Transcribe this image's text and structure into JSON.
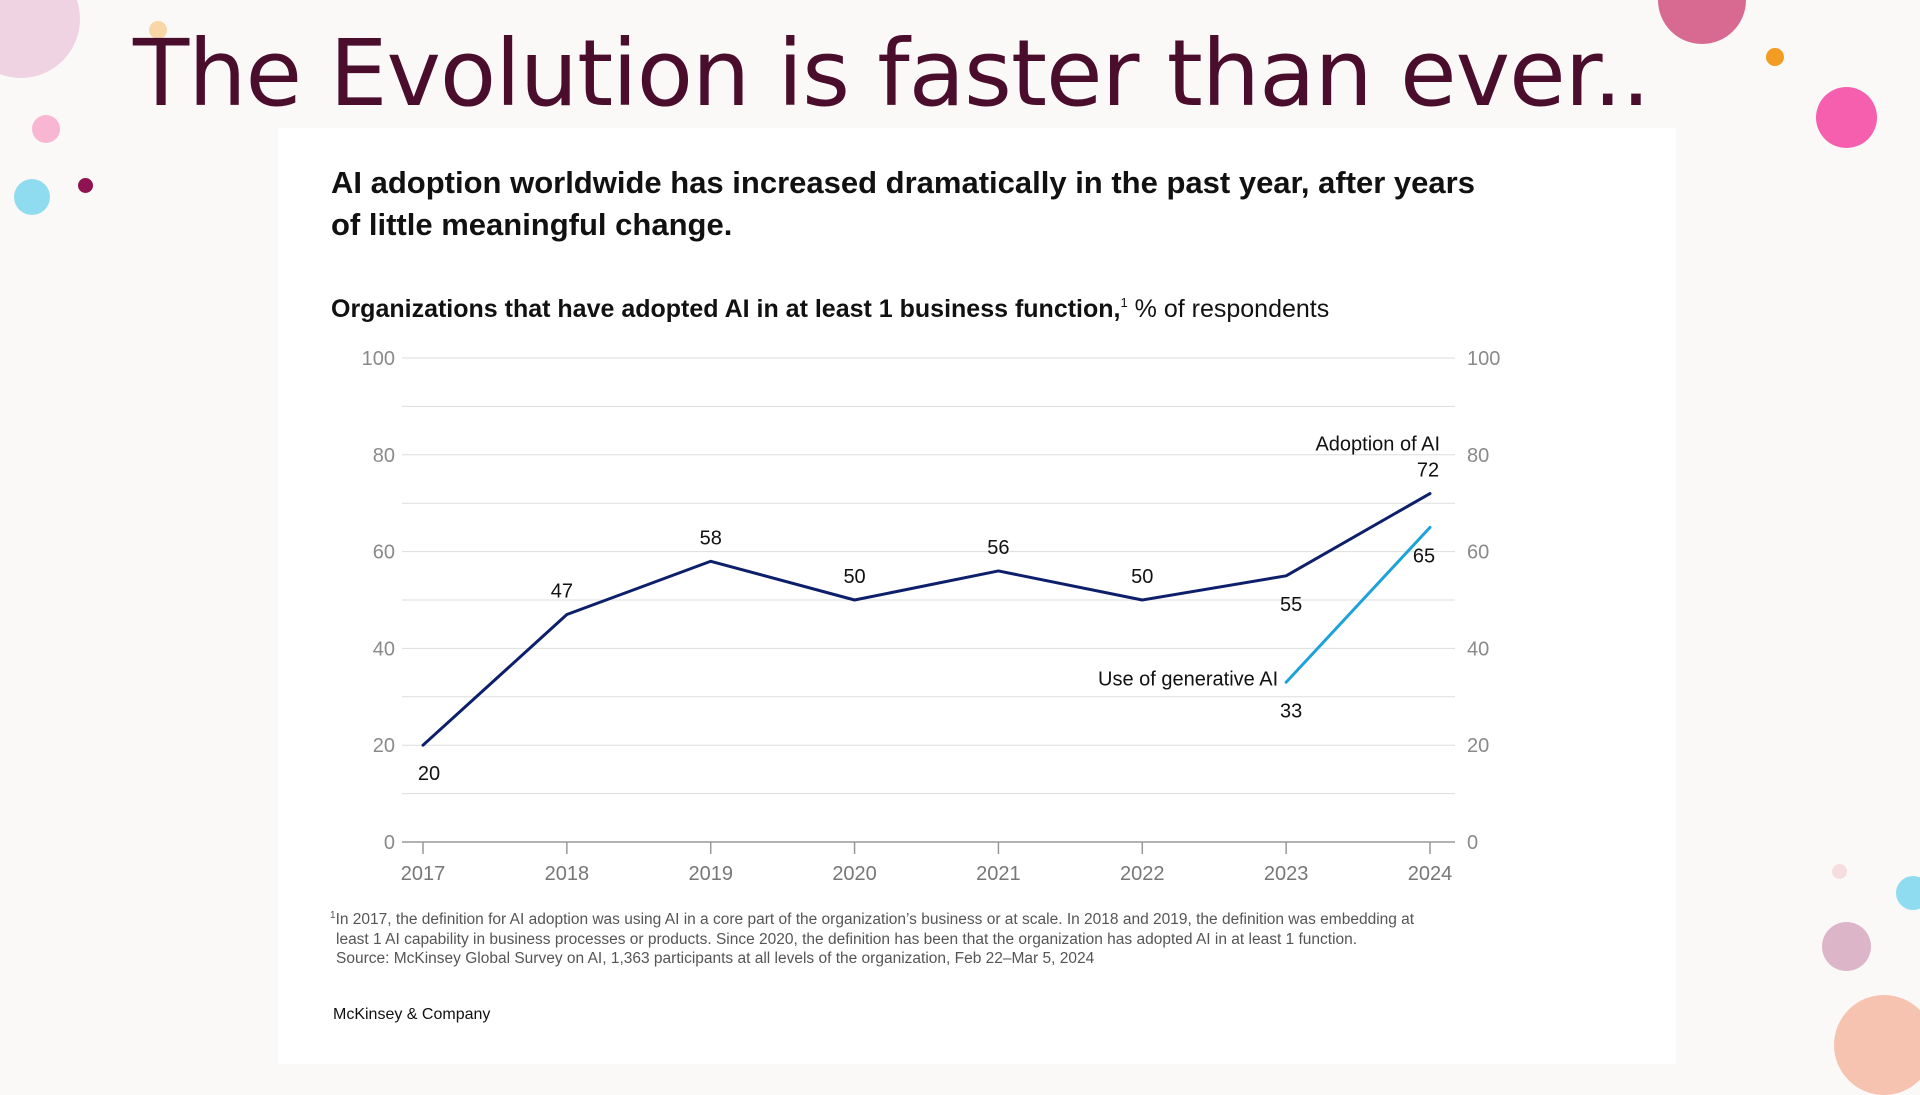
{
  "slide": {
    "title": "The Evolution is faster than ever.."
  },
  "card": {
    "headline": "AI adoption worldwide has increased dramatically in the past year, after years of little meaningful change.",
    "subtitle_bold": "Organizations that have adopted AI in at least 1 business function,",
    "subtitle_sup": "1",
    "subtitle_rest": " % of respondents",
    "footnote_sup": "1",
    "footnote_line1": "In 2017, the definition for AI adoption was using AI in a core part of the organization’s business or at scale. In 2018 and 2019, the definition was embedding at",
    "footnote_line2": "least 1 AI capability in business processes or products. Since 2020, the definition has been that the organization has adopted AI in at least 1 function.",
    "footnote_line3": "Source: McKinsey Global Survey on AI, 1,363 participants at all levels of the organization, Feb 22–Mar 5, 2024",
    "brand": "McKinsey & Company"
  },
  "colors": {
    "title": "#4a0d2c",
    "series_adoption": "#0d1f6a",
    "series_genai": "#1ea2dc",
    "gridline": "#dddddd",
    "tick_label": "#8a8a8a"
  },
  "decorations": [
    {
      "name": "pink-circle",
      "color": "#efd3e2"
    },
    {
      "name": "peach-circle",
      "color": "#f8d6a6"
    },
    {
      "name": "pink-circle",
      "color": "#f8b6d3"
    },
    {
      "name": "cyan-circle",
      "color": "#8fdcf0"
    },
    {
      "name": "maroon-circle",
      "color": "#8e1350"
    },
    {
      "name": "rose-circle",
      "color": "#d86a92"
    },
    {
      "name": "orange-circle",
      "color": "#f39c24"
    },
    {
      "name": "magenta-circle",
      "color": "#f55fae"
    },
    {
      "name": "blush-circle",
      "color": "#f6dede"
    },
    {
      "name": "cyan-circle",
      "color": "#8fdcf0"
    },
    {
      "name": "mauve-circle",
      "color": "#dcb5c8"
    },
    {
      "name": "salmon-circle",
      "color": "#f6c3b0"
    }
  ],
  "chart_data": {
    "type": "line",
    "title": "Organizations that have adopted AI in at least 1 business function, % of respondents",
    "x": [
      "2017",
      "2018",
      "2019",
      "2020",
      "2021",
      "2022",
      "2023",
      "2024"
    ],
    "ylim": [
      0,
      100
    ],
    "yticks": [
      0,
      20,
      40,
      60,
      80,
      100
    ],
    "yaxis_both_sides": true,
    "grid": true,
    "series": [
      {
        "name": "Adoption of AI",
        "x": [
          "2017",
          "2018",
          "2019",
          "2020",
          "2021",
          "2022",
          "2023",
          "2024"
        ],
        "values": [
          20,
          47,
          58,
          50,
          56,
          50,
          55,
          72
        ],
        "color": "#0d1f6a"
      },
      {
        "name": "Use of generative AI",
        "x": [
          "2023",
          "2024"
        ],
        "values": [
          33,
          65
        ],
        "color": "#1ea2dc"
      }
    ]
  }
}
